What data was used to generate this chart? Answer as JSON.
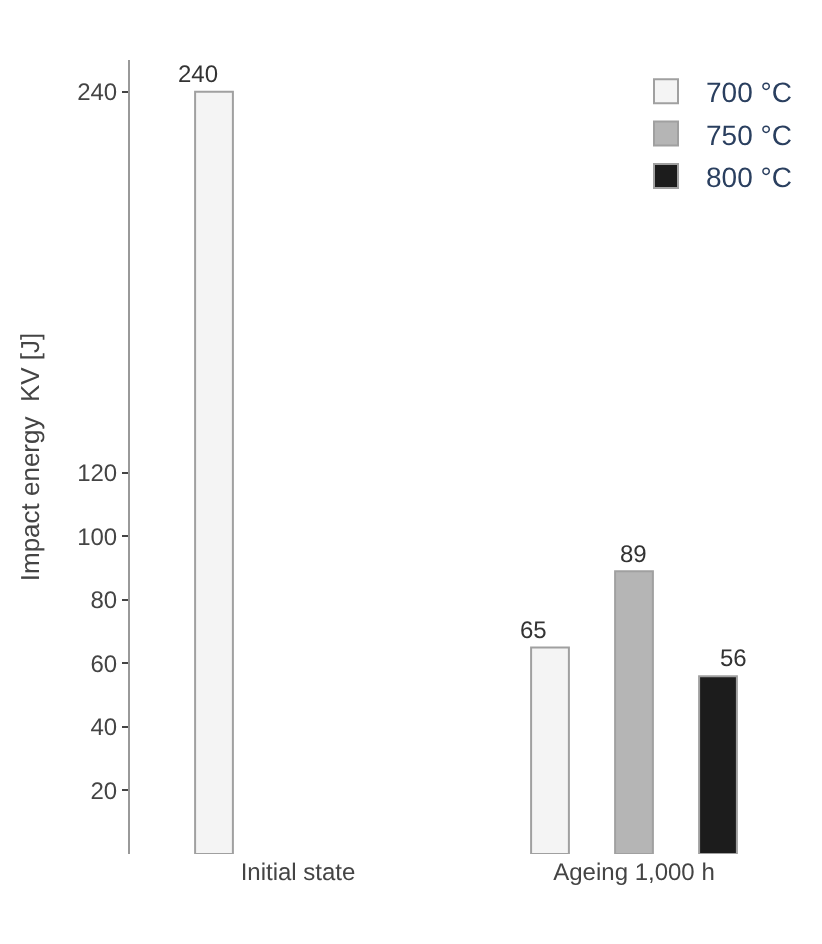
{
  "chart_data": {
    "type": "bar",
    "categories": [
      "Initial state",
      "Ageing 1,000 h"
    ],
    "ylim": [
      0,
      250
    ],
    "yticks": [
      20,
      40,
      60,
      80,
      100,
      120,
      240
    ],
    "ylabel": "Impact energy  KV [J]",
    "legend": "top right",
    "series": [
      {
        "name": "700 °C",
        "color": "#f4f4f4",
        "values": [
          240,
          65
        ],
        "value_labels": [
          "240",
          "65"
        ]
      },
      {
        "name": "750 °C",
        "color": "#b5b5b5",
        "values": [
          null,
          89
        ],
        "value_labels": [
          null,
          "89"
        ]
      },
      {
        "name": "800 °C",
        "color": "#1c1c1c",
        "values": [
          null,
          56
        ],
        "value_labels": [
          null,
          "56"
        ]
      }
    ]
  }
}
